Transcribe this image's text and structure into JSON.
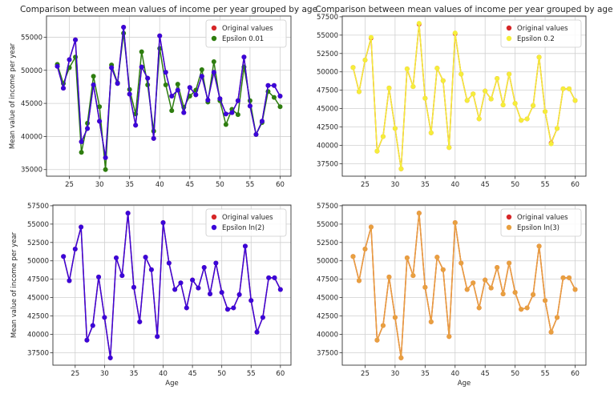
{
  "colors": {
    "original": "#d62728",
    "eps001": "#2e7d0f",
    "eps02": "#f5ee3a",
    "epsln2": "#3a06d9",
    "epsln3": "#e8a040",
    "grid": "#d0d0d0",
    "axes": "#333333"
  },
  "chart_data": [
    {
      "type": "line",
      "title": "Comparison between mean values of income per year grouped by age",
      "xlabel": "",
      "ylabel": "Mean value of income per year",
      "xlim": [
        21.2,
        61.8
      ],
      "ylim": [
        34000,
        58200
      ],
      "xticks": [
        25,
        30,
        35,
        40,
        45,
        50,
        55,
        60
      ],
      "yticks": [
        35000,
        40000,
        45000,
        50000,
        55000
      ],
      "ytick_labels": [
        "35000",
        "40000",
        "45000",
        "50000",
        "55000"
      ],
      "legend_position": "top-right",
      "grid": true,
      "x": [
        23,
        24,
        25,
        26,
        27,
        28,
        29,
        30,
        31,
        32,
        33,
        34,
        35,
        36,
        37,
        38,
        39,
        40,
        41,
        42,
        43,
        44,
        45,
        46,
        47,
        48,
        49,
        50,
        51,
        52,
        53,
        54,
        55,
        56,
        57,
        58,
        59,
        60
      ],
      "series": [
        {
          "name": "Original values",
          "color_key": "original",
          "values": [
            50600,
            47300,
            51600,
            54600,
            39200,
            41200,
            47800,
            42300,
            36800,
            50400,
            48000,
            56500,
            46400,
            41700,
            50500,
            48800,
            39700,
            55200,
            49700,
            46100,
            47000,
            43600,
            47400,
            46300,
            49100,
            45500,
            49700,
            45700,
            43400,
            43600,
            45400,
            52000,
            44600,
            40300,
            42300,
            47700,
            47700,
            46100
          ]
        },
        {
          "name": "Epsilon 0.01",
          "color_key": "eps001",
          "values": [
            50900,
            48000,
            50400,
            52000,
            37600,
            42000,
            49100,
            44500,
            35000,
            50800,
            48100,
            55600,
            47100,
            43400,
            52800,
            47800,
            40800,
            53300,
            47800,
            43900,
            47900,
            44400,
            46100,
            47000,
            50100,
            45200,
            51300,
            45400,
            41800,
            44100,
            43300,
            50500,
            45400,
            40300,
            42100,
            46800,
            45900,
            44500
          ]
        },
        {
          "name": "",
          "color_key": "epsln2",
          "values": [
            50600,
            47300,
            51600,
            54600,
            39200,
            41200,
            47800,
            42300,
            36800,
            50400,
            48000,
            56500,
            46400,
            41700,
            50500,
            48800,
            39700,
            55200,
            49700,
            46100,
            47000,
            43600,
            47400,
            46300,
            49100,
            45500,
            49700,
            45700,
            43400,
            43600,
            45400,
            52000,
            44600,
            40300,
            42300,
            47700,
            47700,
            46100
          ]
        }
      ]
    },
    {
      "type": "line",
      "title": "Comparison between mean values of income per year grouped by age",
      "xlabel": "",
      "ylabel": "",
      "xlim": [
        21.2,
        61.8
      ],
      "ylim": [
        35800,
        57600
      ],
      "xticks": [
        25,
        30,
        35,
        40,
        45,
        50,
        55,
        60
      ],
      "yticks": [
        37500,
        40000,
        42500,
        45000,
        47500,
        50000,
        52500,
        55000,
        57500
      ],
      "ytick_labels": [
        "37500",
        "40000",
        "42500",
        "45000",
        "47500",
        "50000",
        "52500",
        "55000",
        "57500"
      ],
      "legend_position": "top-right",
      "grid": true,
      "x": [
        23,
        24,
        25,
        26,
        27,
        28,
        29,
        30,
        31,
        32,
        33,
        34,
        35,
        36,
        37,
        38,
        39,
        40,
        41,
        42,
        43,
        44,
        45,
        46,
        47,
        48,
        49,
        50,
        51,
        52,
        53,
        54,
        55,
        56,
        57,
        58,
        59,
        60
      ],
      "series": [
        {
          "name": "Original values",
          "color_key": "original",
          "values": [
            50600,
            47300,
            51600,
            54600,
            39200,
            41200,
            47800,
            42300,
            36800,
            50400,
            48000,
            56500,
            46400,
            41700,
            50500,
            48800,
            39700,
            55200,
            49700,
            46100,
            47000,
            43600,
            47400,
            46300,
            49100,
            45500,
            49700,
            45700,
            43400,
            43600,
            45400,
            52000,
            44600,
            40300,
            42300,
            47700,
            47700,
            46100
          ]
        },
        {
          "name": "Epsilon 0.2",
          "color_key": "eps02",
          "values": [
            50600,
            47300,
            51600,
            54700,
            39200,
            41200,
            47800,
            42300,
            36800,
            50400,
            48000,
            56600,
            46400,
            41700,
            50500,
            48800,
            39700,
            55300,
            49700,
            46100,
            47000,
            43600,
            47400,
            46300,
            49100,
            45500,
            49700,
            45700,
            43400,
            43600,
            45400,
            52000,
            44600,
            40200,
            42300,
            47700,
            47700,
            46100
          ]
        }
      ]
    },
    {
      "type": "line",
      "title": "",
      "xlabel": "Age",
      "ylabel": "Mean value of income per year",
      "xlim": [
        21.2,
        61.8
      ],
      "ylim": [
        35800,
        57600
      ],
      "xticks": [
        25,
        30,
        35,
        40,
        45,
        50,
        55,
        60
      ],
      "yticks": [
        37500,
        40000,
        42500,
        45000,
        47500,
        50000,
        52500,
        55000,
        57500
      ],
      "ytick_labels": [
        "37500",
        "40000",
        "42500",
        "45000",
        "47500",
        "50000",
        "52500",
        "55000",
        "57500"
      ],
      "legend_position": "top-right",
      "grid": true,
      "x": [
        23,
        24,
        25,
        26,
        27,
        28,
        29,
        30,
        31,
        32,
        33,
        34,
        35,
        36,
        37,
        38,
        39,
        40,
        41,
        42,
        43,
        44,
        45,
        46,
        47,
        48,
        49,
        50,
        51,
        52,
        53,
        54,
        55,
        56,
        57,
        58,
        59,
        60
      ],
      "series": [
        {
          "name": "Original values",
          "color_key": "original",
          "values": [
            50600,
            47300,
            51600,
            54600,
            39200,
            41200,
            47800,
            42300,
            36800,
            50400,
            48000,
            56500,
            46400,
            41700,
            50500,
            48800,
            39700,
            55200,
            49700,
            46100,
            47000,
            43600,
            47400,
            46300,
            49100,
            45500,
            49700,
            45700,
            43400,
            43600,
            45400,
            52000,
            44600,
            40300,
            42300,
            47700,
            47700,
            46100
          ]
        },
        {
          "name": "Epsilon ln(2)",
          "color_key": "epsln2",
          "values": [
            50600,
            47300,
            51600,
            54600,
            39200,
            41200,
            47800,
            42300,
            36800,
            50400,
            48000,
            56500,
            46400,
            41700,
            50500,
            48800,
            39700,
            55200,
            49700,
            46100,
            47000,
            43600,
            47400,
            46300,
            49100,
            45500,
            49700,
            45700,
            43400,
            43600,
            45400,
            52000,
            44600,
            40300,
            42300,
            47700,
            47700,
            46100
          ]
        }
      ]
    },
    {
      "type": "line",
      "title": "",
      "xlabel": "Age",
      "ylabel": "",
      "xlim": [
        21.2,
        61.8
      ],
      "ylim": [
        35800,
        57600
      ],
      "xticks": [
        25,
        30,
        35,
        40,
        45,
        50,
        55,
        60
      ],
      "yticks": [
        37500,
        40000,
        42500,
        45000,
        47500,
        50000,
        52500,
        55000,
        57500
      ],
      "ytick_labels": [
        "37500",
        "40000",
        "42500",
        "45000",
        "47500",
        "50000",
        "52500",
        "55000",
        "57500"
      ],
      "legend_position": "top-right",
      "grid": true,
      "x": [
        23,
        24,
        25,
        26,
        27,
        28,
        29,
        30,
        31,
        32,
        33,
        34,
        35,
        36,
        37,
        38,
        39,
        40,
        41,
        42,
        43,
        44,
        45,
        46,
        47,
        48,
        49,
        50,
        51,
        52,
        53,
        54,
        55,
        56,
        57,
        58,
        59,
        60
      ],
      "series": [
        {
          "name": "Original values",
          "color_key": "original",
          "values": [
            50600,
            47300,
            51600,
            54600,
            39200,
            41200,
            47800,
            42300,
            36800,
            50400,
            48000,
            56500,
            46400,
            41700,
            50500,
            48800,
            39700,
            55200,
            49700,
            46100,
            47000,
            43600,
            47400,
            46300,
            49100,
            45500,
            49700,
            45700,
            43400,
            43600,
            45400,
            52000,
            44600,
            40300,
            42300,
            47700,
            47700,
            46100
          ]
        },
        {
          "name": "Epsilon ln(3)",
          "color_key": "epsln3",
          "values": [
            50600,
            47300,
            51600,
            54600,
            39200,
            41200,
            47800,
            42300,
            36800,
            50400,
            48000,
            56500,
            46400,
            41700,
            50500,
            48800,
            39700,
            55200,
            49700,
            46100,
            47000,
            43600,
            47400,
            46300,
            49100,
            45500,
            49700,
            45700,
            43400,
            43600,
            45400,
            52000,
            44600,
            40300,
            42300,
            47700,
            47700,
            46100
          ]
        }
      ]
    }
  ]
}
